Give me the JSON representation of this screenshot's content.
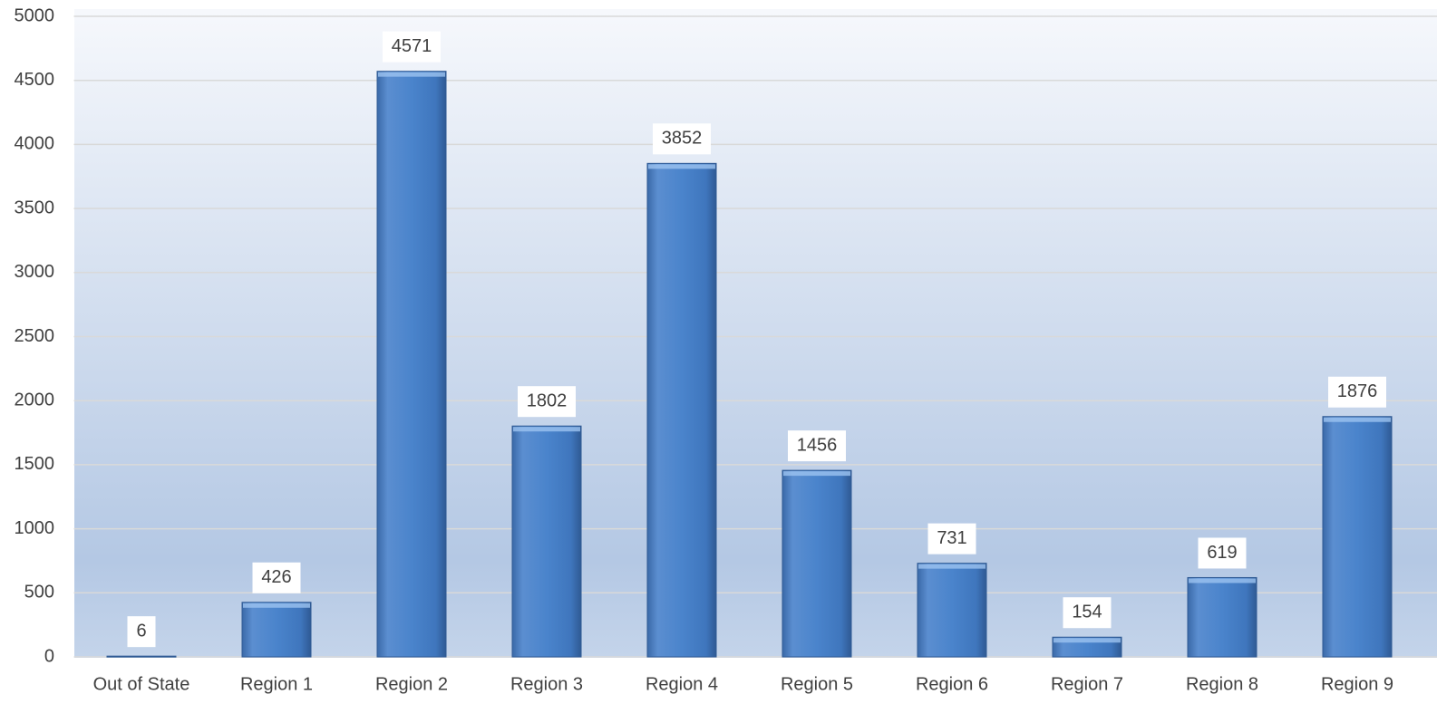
{
  "chart_data": {
    "type": "bar",
    "categories": [
      "Out of State",
      "Region 1",
      "Region 2",
      "Region 3",
      "Region 4",
      "Region 5",
      "Region 6",
      "Region 7",
      "Region 8",
      "Region 9"
    ],
    "values": [
      6,
      426,
      4571,
      1802,
      3852,
      1456,
      731,
      154,
      619,
      1876
    ],
    "color": "#4a7fc4",
    "ylim": [
      0,
      5000
    ],
    "yticks": [
      0,
      500,
      1000,
      1500,
      2000,
      2500,
      3000,
      3500,
      4000,
      4500,
      5000
    ],
    "grid": true
  }
}
